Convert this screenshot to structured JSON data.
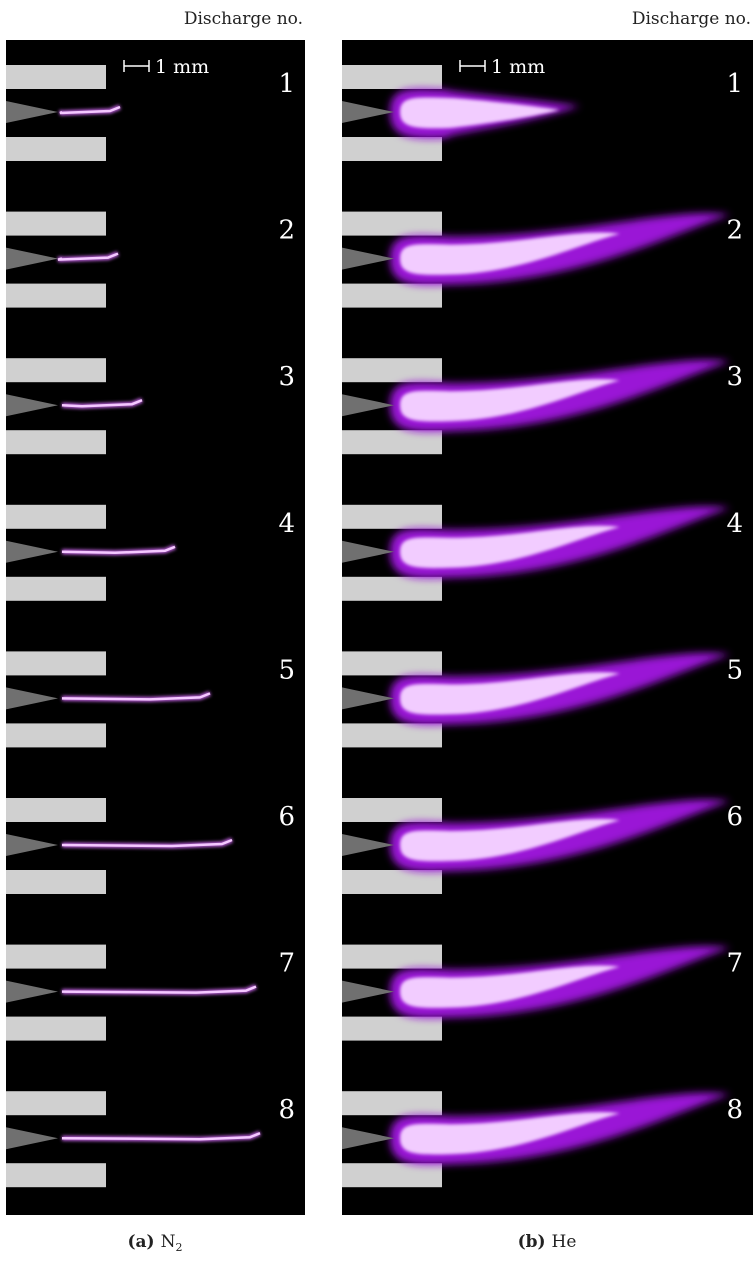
{
  "panels": [
    {
      "header": "Discharge no.",
      "scale": "1 mm",
      "numbers": [
        "1",
        "2",
        "3",
        "4",
        "5",
        "6",
        "7",
        "8"
      ],
      "caption": {
        "label": "(a)",
        "text": "N",
        "sub": "2"
      }
    },
    {
      "header": "Discharge no.",
      "scale": "1 mm",
      "numbers": [
        "1",
        "2",
        "3",
        "4",
        "5",
        "6",
        "7",
        "8"
      ],
      "caption": {
        "label": "(b)",
        "text": "He"
      }
    }
  ]
}
